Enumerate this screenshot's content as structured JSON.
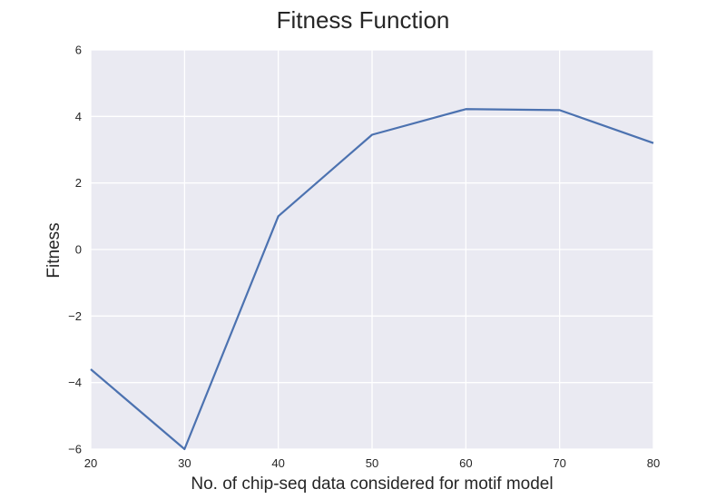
{
  "chart_data": {
    "type": "line",
    "title": "Fitness Function",
    "xlabel": "No. of chip-seq data considered for motif model",
    "ylabel": "Fitness",
    "xlim": [
      20,
      80
    ],
    "ylim": [
      -6,
      6
    ],
    "xticks": [
      20,
      30,
      40,
      50,
      60,
      70,
      80
    ],
    "yticks": [
      -6,
      -4,
      -2,
      0,
      2,
      4,
      6
    ],
    "ytick_labels": [
      "−6",
      "−4",
      "−2",
      "0",
      "2",
      "4",
      "6"
    ],
    "grid": true,
    "series": [
      {
        "x": [
          20,
          30,
          40,
          50,
          60,
          70,
          80
        ],
        "y": [
          -3.6,
          -6.0,
          1.0,
          3.45,
          4.22,
          4.19,
          3.2
        ],
        "color": "#4c72b0"
      }
    ],
    "background_color": "#eaeaf2",
    "grid_color": "#ffffff"
  }
}
